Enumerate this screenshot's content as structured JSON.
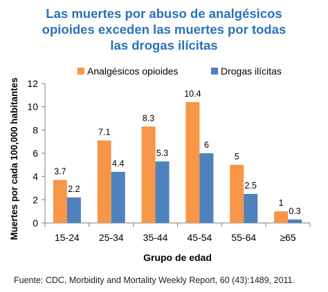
{
  "chart_data": {
    "type": "bar",
    "title_lines": [
      "Las muertes por abuso de analgésicos",
      "opioides exceden las muertes por todas",
      "las drogas ilícitas"
    ],
    "xlabel": "Grupo de edad",
    "ylabel": "Muertes por cada 100,000 habitantes",
    "categories": [
      "15-24",
      "25-34",
      "35-44",
      "45-54",
      "55-64",
      "≥65"
    ],
    "series": [
      {
        "name": "Analgésicos opioides",
        "color": "#f79646",
        "values": [
          3.7,
          7.1,
          8.3,
          10.4,
          5,
          1
        ],
        "labels": [
          "3.7",
          "7.1",
          "8.3",
          "10.4",
          "5",
          "1"
        ]
      },
      {
        "name": "Drogas ilícitas",
        "color": "#4f81bd",
        "values": [
          2.2,
          4.4,
          5.3,
          6,
          2.5,
          0.3
        ],
        "labels": [
          "2.2",
          "4.4",
          "5.3",
          "6",
          "2.5",
          "0.3"
        ]
      }
    ],
    "ylim": [
      0,
      12
    ],
    "yticks": [
      0,
      2,
      4,
      6,
      8,
      10,
      12
    ],
    "grid": false,
    "legend_position": "top"
  },
  "source": "Fuente: CDC, Morbidity and Mortality Weekly Report, 60 (43):1489, 2011."
}
